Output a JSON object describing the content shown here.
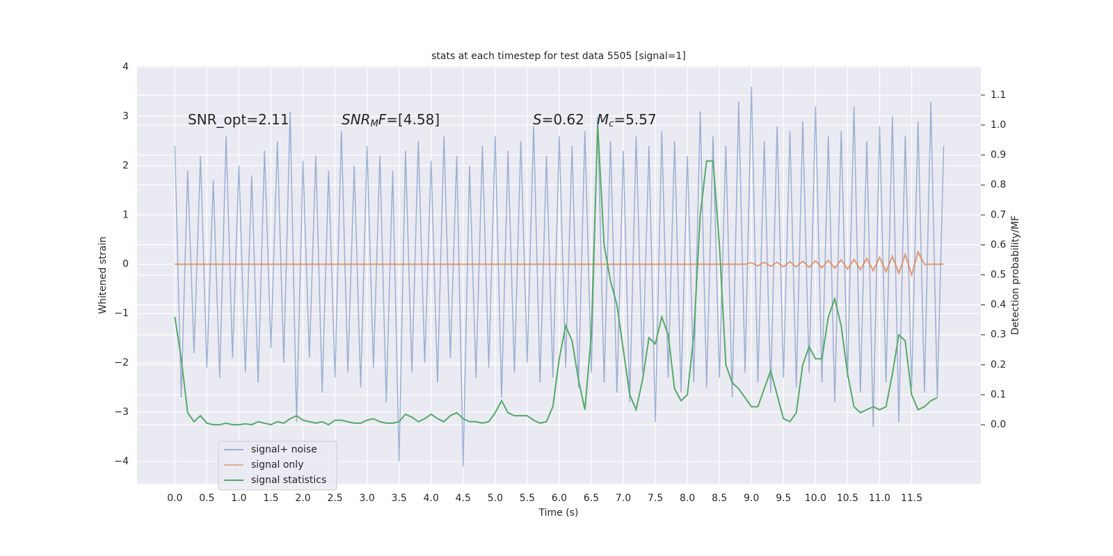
{
  "chart_data": {
    "type": "line",
    "title": "stats at each timestep for test data 5505 [signal=1]",
    "xlabel": "Time (s)",
    "ylabel": "Whitened strain",
    "y2label": "Detection probability/MF",
    "annotations": [
      [
        {
          "text": "SNR_opt=2.11",
          "style": "normal"
        }
      ],
      [
        {
          "text": "SNR",
          "style": "italic"
        },
        {
          "text": "M",
          "style": "italic-sub"
        },
        {
          "text": "F",
          "style": "italic"
        },
        {
          "text": "=[4.58]",
          "style": "normal"
        }
      ],
      [
        {
          "text": "S",
          "style": "italic"
        },
        {
          "text": "=0.62",
          "style": "normal"
        }
      ],
      [
        {
          "text": "M",
          "style": "italic"
        },
        {
          "text": "c",
          "style": "italic-sub"
        },
        {
          "text": "=5.57",
          "style": "normal"
        }
      ]
    ],
    "x": [
      0,
      0.1,
      0.2,
      0.3,
      0.4,
      0.5,
      0.6,
      0.7,
      0.8,
      0.9,
      1,
      1.1,
      1.2,
      1.3,
      1.4,
      1.5,
      1.6,
      1.7,
      1.8,
      1.9,
      2,
      2.1,
      2.2,
      2.3,
      2.4,
      2.5,
      2.6,
      2.7,
      2.8,
      2.9,
      3,
      3.1,
      3.2,
      3.3,
      3.4,
      3.5,
      3.6,
      3.7,
      3.8,
      3.9,
      4,
      4.1,
      4.2,
      4.3,
      4.4,
      4.5,
      4.6,
      4.7,
      4.8,
      4.9,
      5,
      5.1,
      5.2,
      5.3,
      5.4,
      5.5,
      5.6,
      5.7,
      5.8,
      5.9,
      6,
      6.1,
      6.2,
      6.3,
      6.4,
      6.5,
      6.6,
      6.7,
      6.8,
      6.9,
      7,
      7.1,
      7.2,
      7.3,
      7.4,
      7.5,
      7.6,
      7.7,
      7.8,
      7.9,
      8,
      8.1,
      8.2,
      8.3,
      8.4,
      8.5,
      8.6,
      8.7,
      8.8,
      8.9,
      9,
      9.1,
      9.2,
      9.3,
      9.4,
      9.5,
      9.6,
      9.7,
      9.8,
      9.9,
      10,
      10.1,
      10.2,
      10.3,
      10.4,
      10.5,
      10.6,
      10.7,
      10.8,
      10.9,
      11,
      11.1,
      11.2,
      11.3,
      11.4,
      11.5,
      11.6,
      11.7,
      11.8,
      11.9,
      12
    ],
    "series": [
      {
        "name": "signal+ noise",
        "color": "#4c72b0",
        "values": [
          2.4,
          -2.7,
          1.9,
          -1.8,
          2.2,
          -2.1,
          1.7,
          -2.3,
          2.6,
          -1.9,
          2.0,
          -2.2,
          1.8,
          -2.4,
          2.3,
          -1.7,
          2.5,
          -2.0,
          3.1,
          -3.2,
          2.1,
          -1.9,
          2.2,
          -2.6,
          1.9,
          -2.3,
          2.7,
          -2.2,
          2.0,
          -2.5,
          2.4,
          -2.1,
          2.2,
          -2.8,
          1.9,
          -4.0,
          2.3,
          -2.2,
          2.5,
          -2.0,
          2.1,
          -2.4,
          2.6,
          -1.9,
          2.2,
          -4.1,
          2.0,
          -2.3,
          2.4,
          -2.1,
          2.6,
          -2.7,
          2.3,
          -2.2,
          2.5,
          -2.0,
          2.8,
          -2.4,
          2.2,
          -2.3,
          2.6,
          -2.1,
          2.4,
          -2.5,
          2.7,
          -2.2,
          3.0,
          -2.4,
          2.5,
          -2.6,
          2.3,
          -2.8,
          2.6,
          -2.2,
          2.4,
          -3.2,
          2.7,
          -2.3,
          2.5,
          -2.6,
          2.2,
          -2.4,
          3.1,
          -2.5,
          2.6,
          -2.3,
          2.4,
          -2.7,
          3.3,
          -2.2,
          3.6,
          -2.4,
          2.5,
          -2.6,
          2.8,
          -2.3,
          2.7,
          -2.5,
          2.9,
          -2.2,
          3.2,
          -2.4,
          2.6,
          -2.8,
          2.7,
          -2.3,
          3.2,
          -2.6,
          2.5,
          -3.3,
          2.8,
          -2.4,
          3.0,
          -3.2,
          2.6,
          -2.5,
          2.9,
          -2.6,
          3.3,
          -2.7,
          2.4
        ]
      },
      {
        "name": "signal only",
        "color": "#dd8452",
        "values": [
          0,
          0,
          0,
          0,
          0,
          0,
          0,
          0,
          0,
          0,
          0,
          0,
          0,
          0,
          0,
          0,
          0,
          0,
          0,
          0,
          0,
          0,
          0,
          0,
          0,
          0,
          0,
          0,
          0,
          0,
          0,
          0,
          0,
          0,
          0,
          0,
          0,
          0,
          0,
          0,
          0,
          0,
          0,
          0,
          0,
          0,
          0,
          0,
          0,
          0,
          0,
          0,
          0,
          0,
          0,
          0,
          0,
          0,
          0,
          0,
          0,
          0,
          0,
          0,
          0,
          0,
          0,
          0,
          0,
          0,
          0,
          0,
          0,
          0,
          0,
          0,
          0,
          0,
          0,
          0,
          0,
          0,
          0,
          0,
          0,
          0,
          0,
          0,
          0,
          0,
          0.03,
          -0.03,
          0.04,
          -0.04,
          0.04,
          -0.05,
          0.05,
          -0.05,
          0.06,
          -0.06,
          0.07,
          -0.07,
          0.08,
          -0.08,
          0.09,
          -0.1,
          0.1,
          -0.11,
          0.12,
          -0.13,
          0.14,
          -0.15,
          0.16,
          -0.18,
          0.2,
          -0.22,
          0.25,
          0,
          0,
          0,
          0
        ]
      },
      {
        "name": "signal statistics",
        "color": "#55a868",
        "axis": "y2",
        "values": [
          0.36,
          0.22,
          0.04,
          0.01,
          0.03,
          0.005,
          0,
          0,
          0.005,
          0,
          0,
          0.003,
          0,
          0.01,
          0.005,
          0,
          0.01,
          0.005,
          0.02,
          0.03,
          0.015,
          0.01,
          0.005,
          0.01,
          0,
          0.015,
          0.015,
          0.01,
          0.005,
          0.005,
          0.015,
          0.02,
          0.01,
          0.005,
          0.005,
          0.01,
          0.035,
          0.025,
          0.01,
          0.02,
          0.035,
          0.02,
          0.01,
          0.03,
          0.04,
          0.02,
          0.01,
          0.01,
          0.005,
          0.01,
          0.04,
          0.08,
          0.04,
          0.03,
          0.03,
          0.03,
          0.015,
          0.005,
          0.01,
          0.06,
          0.22,
          0.33,
          0.28,
          0.15,
          0.05,
          0.3,
          1.0,
          0.6,
          0.48,
          0.4,
          0.25,
          0.1,
          0.05,
          0.15,
          0.29,
          0.27,
          0.36,
          0.3,
          0.12,
          0.08,
          0.1,
          0.3,
          0.7,
          0.88,
          0.88,
          0.6,
          0.2,
          0.14,
          0.12,
          0.09,
          0.06,
          0.06,
          0.12,
          0.18,
          0.1,
          0.02,
          0.01,
          0.04,
          0.2,
          0.26,
          0.22,
          0.22,
          0.36,
          0.42,
          0.33,
          0.17,
          0.06,
          0.04,
          0.05,
          0.06,
          0.05,
          0.06,
          0.17,
          0.3,
          0.28,
          0.1,
          0.05,
          0.06,
          0.08,
          0.09,
          null
        ]
      }
    ],
    "xlim": [
      -0.59,
      12.58
    ],
    "ylim": [
      -4.45,
      4.02
    ],
    "y2lim": [
      -0.197,
      1.197
    ],
    "xticks": [
      {
        "value": 0,
        "label": "0.0"
      },
      0.5,
      {
        "value": 1,
        "label": "1.0"
      },
      1.5,
      {
        "value": 2,
        "label": "2.0"
      },
      2.5,
      {
        "value": 3,
        "label": "3.0"
      },
      3.5,
      {
        "value": 4,
        "label": "4.0"
      },
      4.5,
      {
        "value": 5,
        "label": "5.0"
      },
      5.5,
      {
        "value": 6,
        "label": "6.0"
      },
      6.5,
      {
        "value": 7,
        "label": "7.0"
      },
      7.5,
      {
        "value": 8,
        "label": "8.0"
      },
      8.5,
      {
        "value": 9,
        "label": "9.0"
      },
      9.5,
      {
        "value": 10,
        "label": "10.0"
      },
      10.5,
      {
        "value": 11,
        "label": "11.0"
      },
      11.5
    ],
    "yticks": [
      {
        "value": -4,
        "label": "−4"
      },
      {
        "value": -3,
        "label": "−3"
      },
      {
        "value": -2,
        "label": "−2"
      },
      {
        "value": -1,
        "label": "−1"
      },
      0,
      1,
      2,
      3,
      4
    ],
    "y2ticks": [
      {
        "value": 0,
        "label": "0.0"
      },
      0.1,
      0.2,
      0.3,
      0.4,
      0.5,
      0.6,
      0.7,
      0.8,
      0.9,
      {
        "value": 1,
        "label": "1.0"
      },
      1.1
    ],
    "grid": true,
    "legend": "lower left"
  }
}
